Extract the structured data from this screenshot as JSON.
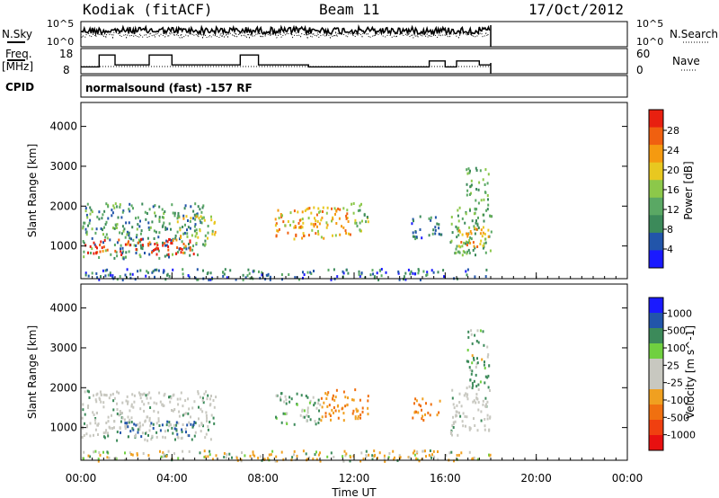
{
  "header": {
    "station": "Kodiak (fitACF)",
    "beam": "Beam 11",
    "date": "17/Oct/2012"
  },
  "top_panels": {
    "nsky_label": "N.Sky",
    "nsky_ticks": [
      "10^5",
      "10^0"
    ],
    "nsearch_label": "N.Search",
    "nsearch_ticks": [
      "10^5",
      "10^0"
    ],
    "freq_label_1": "Freq.",
    "freq_label_2": "[MHz]",
    "freq_ticks": [
      "18",
      "8"
    ],
    "nave_label": "Nave",
    "nave_ticks": [
      "60",
      "0"
    ],
    "cpid_label": "CPID",
    "cpid_text": "normalsound (fast) -157 RF"
  },
  "colors": {
    "power_scale": [
      "#1a1aff",
      "#2255aa",
      "#3c8a5a",
      "#5aa864",
      "#8cc84a",
      "#e8c820",
      "#f59a10",
      "#f06010",
      "#e82010"
    ],
    "velocity_scale": [
      "#1a1aff",
      "#2255aa",
      "#3c8a5a",
      "#70d040",
      "#c8c8c0",
      "#c8c8c0",
      "#f0a020",
      "#f07010",
      "#f04010",
      "#e81010"
    ],
    "ground_scatter": "#c8c8c0"
  },
  "chart_data": [
    {
      "type": "line",
      "name": "N.Sky / N.Search",
      "x": [
        "00:00",
        "24:00"
      ],
      "y_scale": "log",
      "yticks": [
        "10^5",
        "10^0"
      ]
    },
    {
      "type": "line",
      "name": "Freq / Nave",
      "x_hours": [
        0,
        0.5,
        0.8,
        1.5,
        2.5,
        3.0,
        3.5,
        4.0,
        4.5,
        5.0,
        6.2,
        6.5,
        7.0,
        7.3,
        7.8,
        8.5,
        10.0,
        12.0,
        14.0,
        15.0,
        15.3,
        16.0,
        16.5,
        17.5,
        18.0
      ],
      "freq_mhz": [
        11,
        11,
        17,
        12,
        12,
        17,
        17,
        12,
        12,
        12,
        12,
        12,
        17,
        17,
        12,
        12,
        11,
        11,
        11,
        11,
        14,
        11,
        14,
        12,
        12
      ],
      "yticks_left": [
        "18",
        "8"
      ],
      "yticks_right": [
        "60",
        "0"
      ]
    },
    {
      "type": "heatmap",
      "title": "",
      "ylabel": "Slant Range [km]",
      "xlabel": "Time UT",
      "colorbar_label": "Power [dB]",
      "colorbar_ticks": [
        "28",
        "24",
        "20",
        "16",
        "12",
        "8",
        "4"
      ],
      "xticks": [
        "00:00",
        "04:00",
        "08:00",
        "12:00",
        "16:00",
        "20:00",
        "00:00"
      ],
      "yticks": [
        "1000",
        "2000",
        "3000",
        "4000"
      ],
      "xlim_hours": [
        0,
        24
      ],
      "ylim_km": [
        180,
        4600
      ],
      "regions": [
        {
          "t0": 0.0,
          "t1": 5.5,
          "r0": 700,
          "r1": 2100,
          "level": 8
        },
        {
          "t0": 0.1,
          "t1": 5.0,
          "r0": 800,
          "r1": 1200,
          "level": 26
        },
        {
          "t0": 4.2,
          "t1": 5.9,
          "r0": 1200,
          "r1": 1800,
          "level": 14
        },
        {
          "t0": 8.5,
          "t1": 11.8,
          "r0": 1200,
          "r1": 2000,
          "level": 18
        },
        {
          "t0": 11.8,
          "t1": 12.6,
          "r0": 1400,
          "r1": 2100,
          "level": 12
        },
        {
          "t0": 14.5,
          "t1": 15.8,
          "r0": 1200,
          "r1": 1800,
          "level": 6
        },
        {
          "t0": 16.2,
          "t1": 18.0,
          "r0": 800,
          "r1": 2000,
          "level": 10
        },
        {
          "t0": 16.5,
          "t1": 17.9,
          "r0": 1000,
          "r1": 1500,
          "level": 20
        },
        {
          "t0": 16.9,
          "t1": 17.9,
          "r0": 2000,
          "r1": 3000,
          "level": 10
        },
        {
          "t0": 0.0,
          "t1": 18.0,
          "r0": 180,
          "r1": 450,
          "level": 5
        }
      ]
    },
    {
      "type": "heatmap",
      "title": "",
      "ylabel": "Slant Range [km]",
      "xlabel": "Time UT",
      "colorbar_label": "Velocity [m s^-1]",
      "colorbar_ticks": [
        "1000",
        "500",
        "100",
        "25",
        "-25",
        "-100",
        "-500",
        "-1000"
      ],
      "xticks": [
        "00:00",
        "04:00",
        "08:00",
        "12:00",
        "16:00",
        "20:00",
        "00:00"
      ],
      "yticks": [
        "1000",
        "2000",
        "3000",
        "4000"
      ],
      "xlim_hours": [
        0,
        24
      ],
      "ylim_km": [
        180,
        4600
      ],
      "regions": [
        {
          "t0": 0.0,
          "t1": 5.9,
          "r0": 700,
          "r1": 1950,
          "velocity": 0
        },
        {
          "t0": 1.5,
          "t1": 5.0,
          "r0": 800,
          "r1": 1200,
          "velocity": 300
        },
        {
          "t0": 7.2,
          "t1": 7.5,
          "r0": 600,
          "r1": 750,
          "velocity": 200
        },
        {
          "t0": 8.5,
          "t1": 10.5,
          "r0": 1100,
          "r1": 1900,
          "velocity": 100
        },
        {
          "t0": 10.5,
          "t1": 12.6,
          "r0": 1200,
          "r1": 2000,
          "velocity": -300
        },
        {
          "t0": 14.5,
          "t1": 15.8,
          "r0": 1200,
          "r1": 1800,
          "velocity": -300
        },
        {
          "t0": 16.2,
          "t1": 18.0,
          "r0": 800,
          "r1": 2000,
          "velocity": 0
        },
        {
          "t0": 16.9,
          "t1": 17.9,
          "r0": 2000,
          "r1": 3500,
          "velocity": 80
        },
        {
          "t0": 0.0,
          "t1": 18.0,
          "r0": 180,
          "r1": 450,
          "velocity": -50
        }
      ]
    }
  ]
}
